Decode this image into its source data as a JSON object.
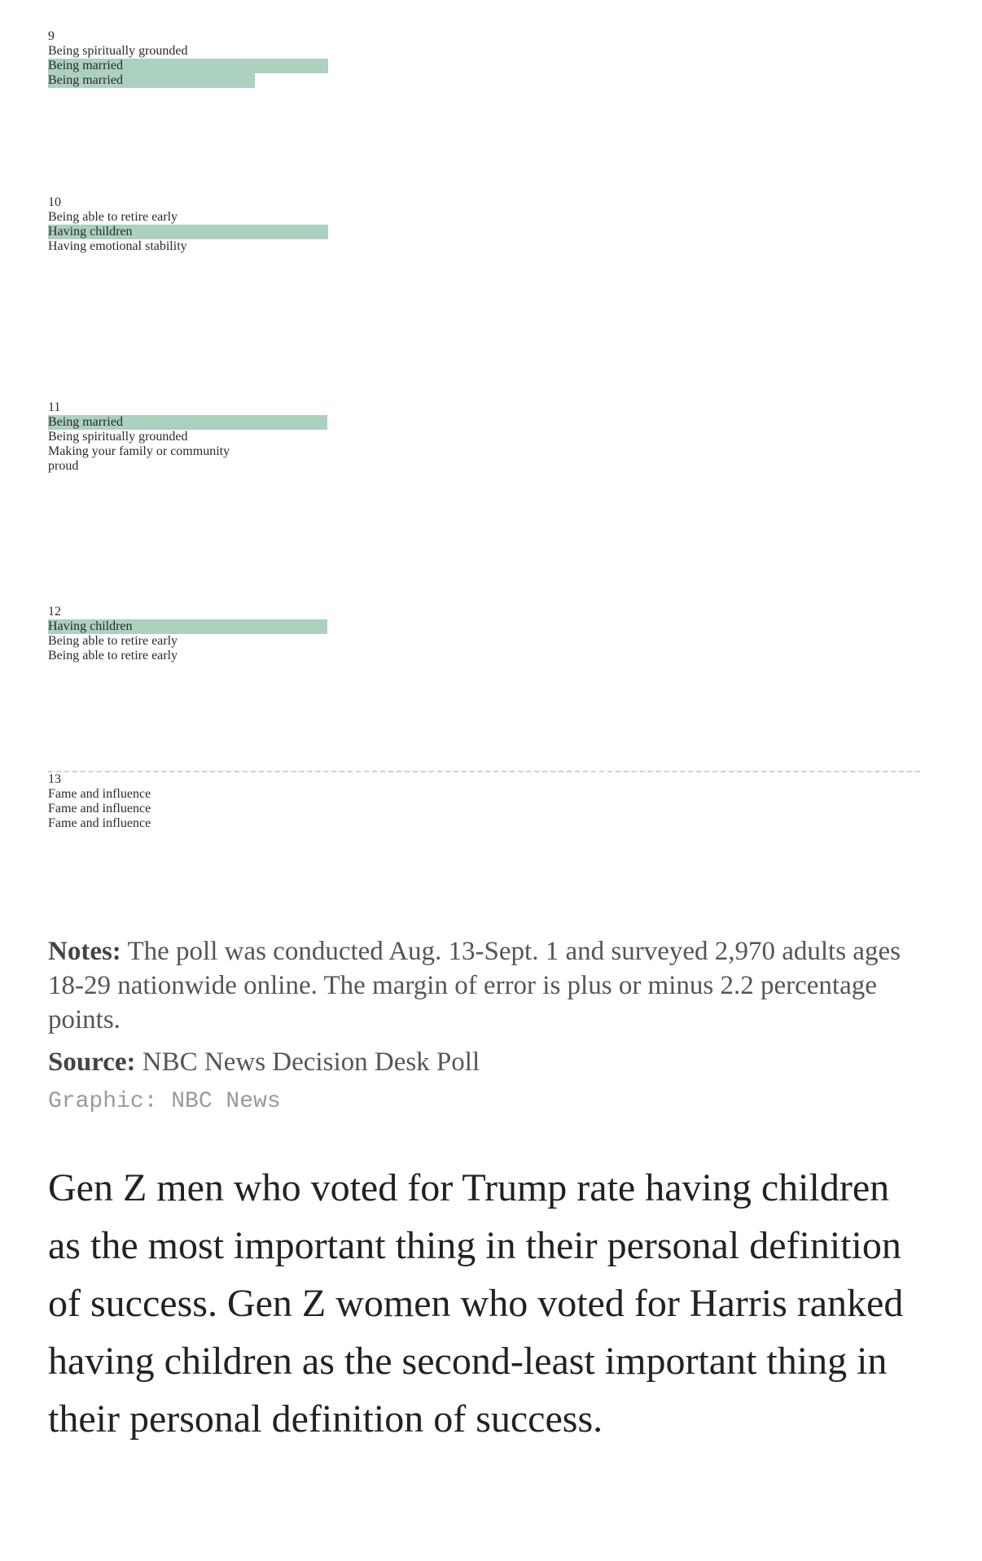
{
  "highlight_color": "#acd1bf",
  "table": {
    "rows": [
      {
        "rank": "9",
        "cells": [
          {
            "text": "Being\nspiritually\ngrounded"
          },
          {
            "text": "Being married",
            "highlight": true
          },
          {
            "text": "Being married",
            "highlight": true
          }
        ]
      },
      {
        "rank": "10",
        "cells": [
          {
            "text": "Being able to\nretire early"
          },
          {
            "text": "Having\nchildren",
            "highlight": true
          },
          {
            "text": "Having\nemotional\nstability"
          }
        ]
      },
      {
        "rank": "11",
        "cells": [
          {
            "text": "Being married",
            "highlight": true
          },
          {
            "text": "Being\nspiritually\ngrounded"
          },
          {
            "text": "Making your\nfamily or\ncommunity\nproud"
          }
        ]
      },
      {
        "rank": "12",
        "cells": [
          {
            "text": "Having\nchildren",
            "highlight": true
          },
          {
            "text": "Being able to\nretire early"
          },
          {
            "text": "Being able to\nretire early"
          }
        ]
      },
      {
        "rank": "13",
        "cells": [
          {
            "text": "Fame and\ninfluence"
          },
          {
            "text": "Fame and\ninfluence"
          },
          {
            "text": "Fame and\ninfluence"
          }
        ]
      }
    ]
  },
  "notes": {
    "label": "Notes:",
    "text": "The poll was conducted Aug. 13-Sept. 1 and surveyed 2,970 adults ages 18-29 nationwide online. The margin of error is plus or minus 2.2 percentage points."
  },
  "source": {
    "label": "Source:",
    "text": "NBC News Decision Desk Poll"
  },
  "credit": "Graphic: NBC News",
  "paragraph": "Gen Z men who voted for Trump rate having children as the most important thing in their personal definition of success. Gen Z women who voted for Harris ranked having children as the second-least important thing in their personal definition of success."
}
